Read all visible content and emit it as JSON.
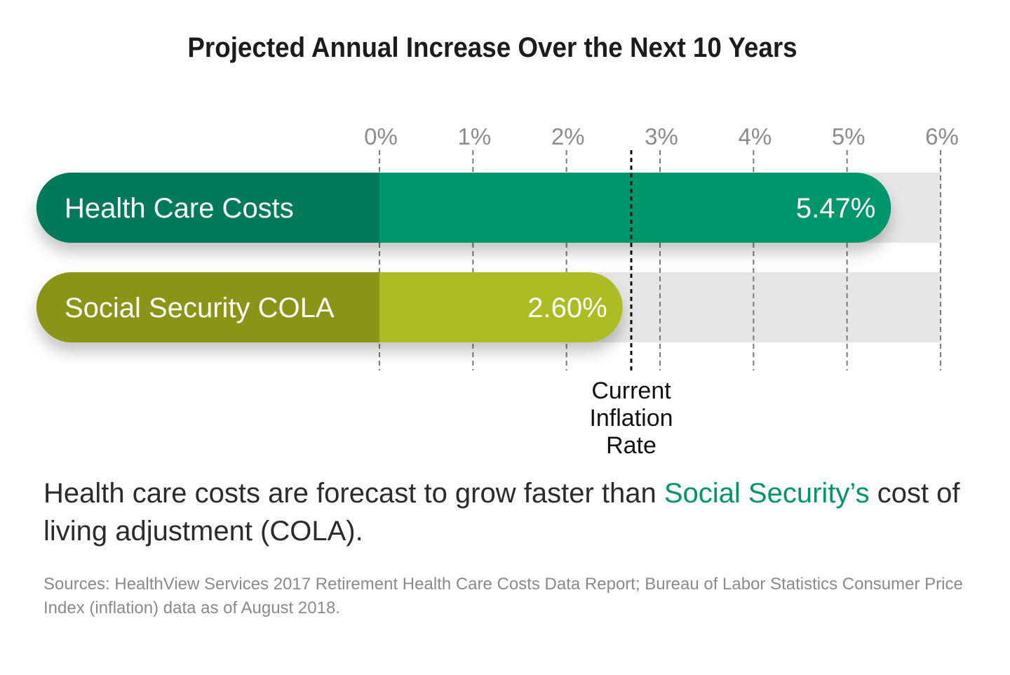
{
  "chart_data": {
    "type": "bar",
    "orientation": "horizontal",
    "title": "Projected Annual Increase Over the Next 10 Years",
    "ticks": [
      "0%",
      "1%",
      "2%",
      "3%",
      "4%",
      "5%",
      "6%"
    ],
    "xlim": [
      0,
      6
    ],
    "categories": [
      "Health Care Costs",
      "Social Security COLA"
    ],
    "values": [
      5.47,
      2.6
    ],
    "value_labels": [
      "5.47%",
      "2.60%"
    ],
    "grid": true,
    "reference_line": {
      "value": 2.7,
      "label_lines": [
        "Current",
        "Inflation",
        "Rate"
      ]
    },
    "colors": {
      "health_main": "#00966c",
      "health_label": "#007a5a",
      "cola_main": "#abbd21",
      "cola_label": "#8a9418",
      "track": "#e6e6e6",
      "grid": "#7a7a7a"
    }
  },
  "caption": {
    "text_before": "Health care costs are forecast to grow faster than ",
    "highlight": "Social Security’s",
    "text_after": " cost of living adjustment (COLA)."
  },
  "sources": "Sources: HealthView Services 2017 Retirement Health Care Costs Data Report; Bureau of Labor Statistics Consumer Price Index (inflation) data as of August 2018."
}
